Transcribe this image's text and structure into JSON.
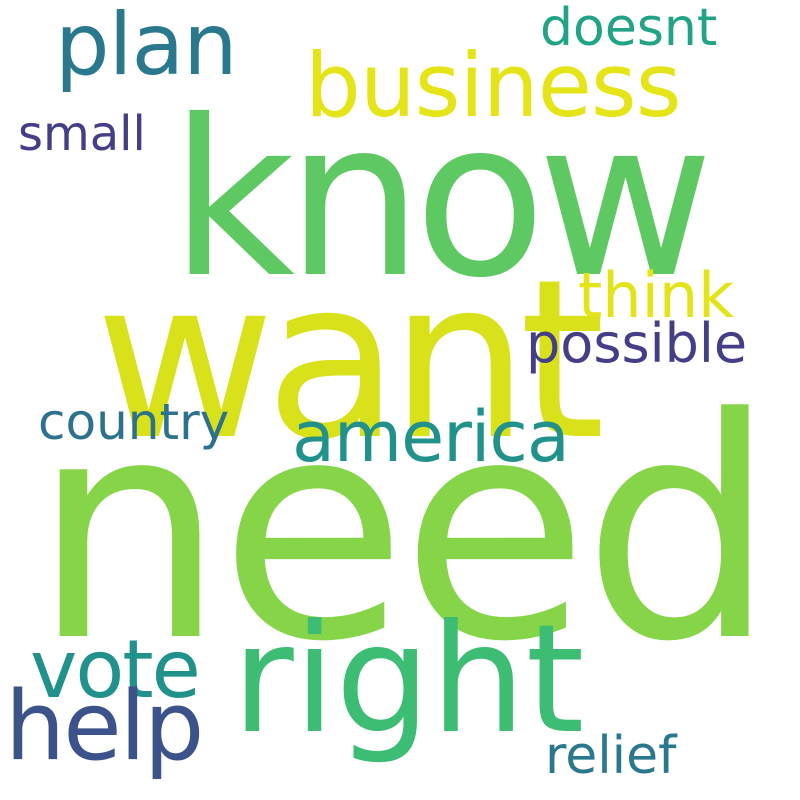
{
  "words": {
    "know": {
      "text": "know",
      "color": "#5ec962"
    },
    "want": {
      "text": "want",
      "color": "#d9e11b"
    },
    "need": {
      "text": "need",
      "color": "#86d549"
    },
    "right": {
      "text": "right",
      "color": "#3dbc74"
    },
    "business": {
      "text": "business",
      "color": "#e5e419"
    },
    "plan": {
      "text": "plan",
      "color": "#2a788e"
    },
    "doesnt": {
      "text": "doesnt",
      "color": "#20a386"
    },
    "small": {
      "text": "small",
      "color": "#433e85"
    },
    "think": {
      "text": "think",
      "color": "#e2e418"
    },
    "possible": {
      "text": "possible",
      "color": "#433e85"
    },
    "country": {
      "text": "country",
      "color": "#2c728e"
    },
    "america": {
      "text": "america",
      "color": "#21918c"
    },
    "vote": {
      "text": "vote",
      "color": "#21918c"
    },
    "help": {
      "text": "help",
      "color": "#3b528b"
    },
    "relief": {
      "text": "relief",
      "color": "#2a788e"
    }
  }
}
